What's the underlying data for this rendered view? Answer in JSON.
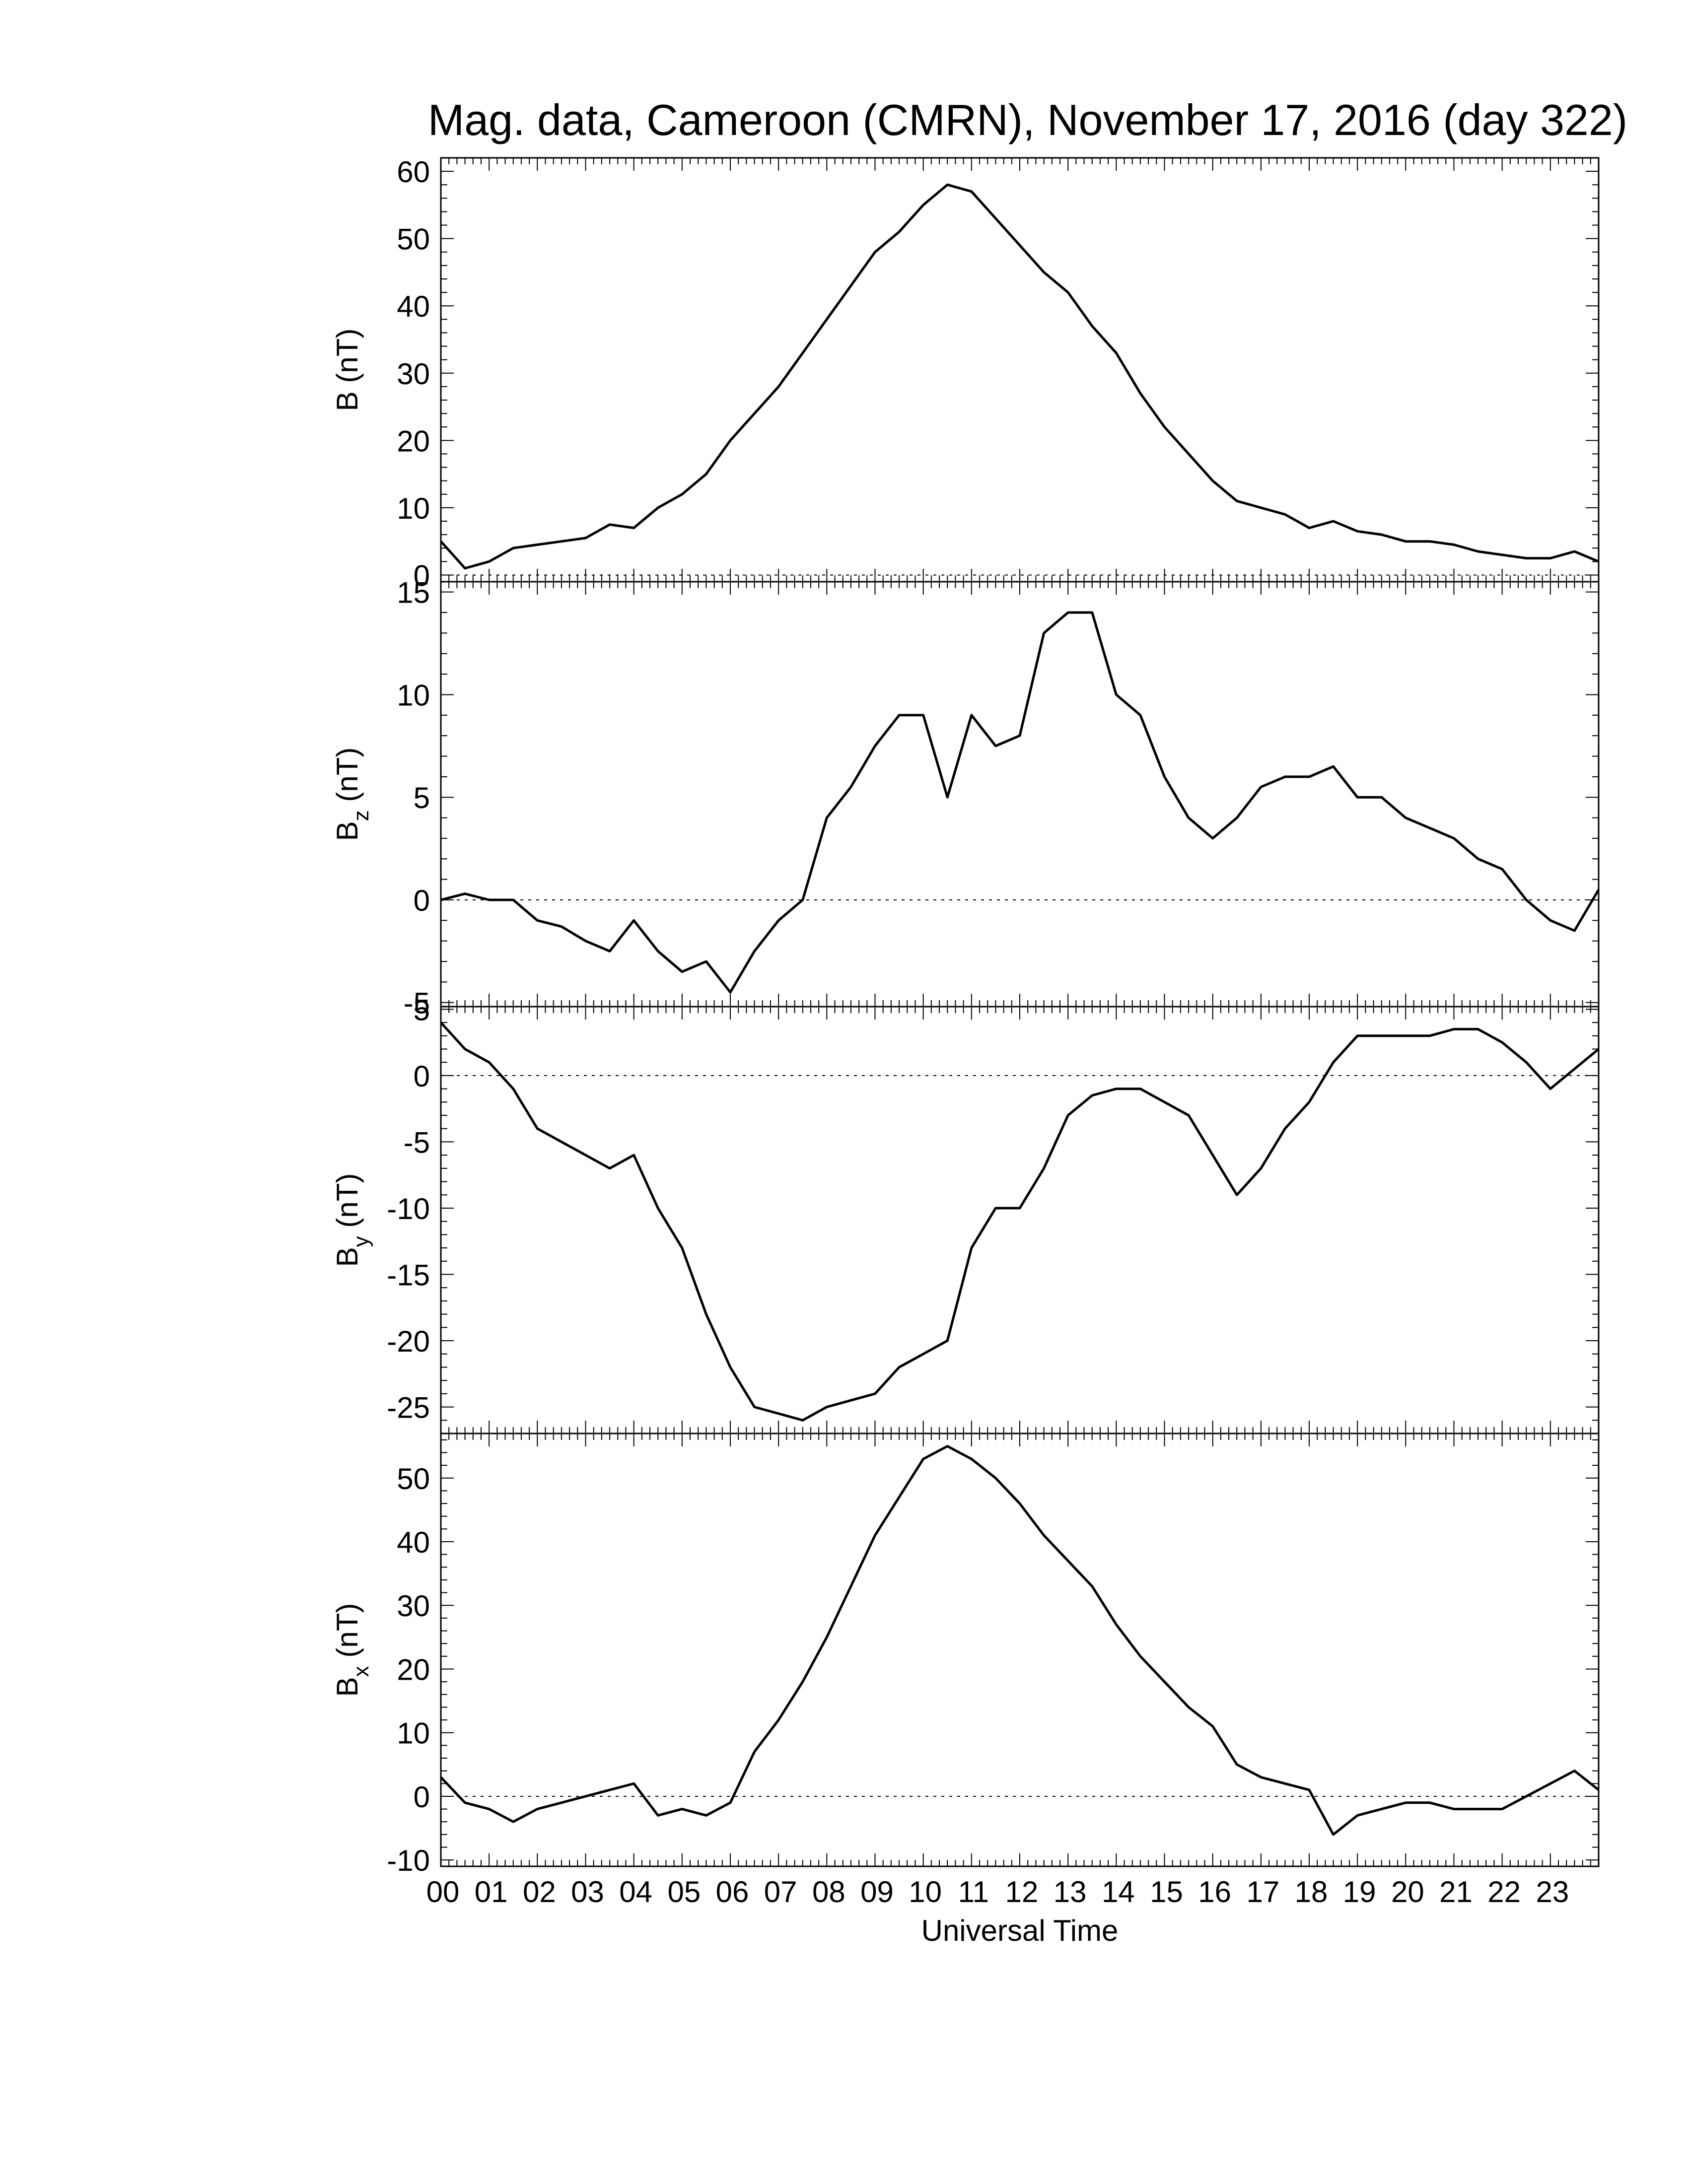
{
  "title": "Mag. data, Cameroon (CMRN), November 17, 2016 (day 322)",
  "xlabel": "Universal Time",
  "x_tick_labels": [
    "00",
    "01",
    "02",
    "03",
    "04",
    "05",
    "06",
    "07",
    "08",
    "09",
    "10",
    "11",
    "12",
    "13",
    "14",
    "15",
    "16",
    "17",
    "18",
    "19",
    "20",
    "21",
    "22",
    "23"
  ],
  "chart_data": [
    {
      "type": "line",
      "ylabel_main": "B",
      "ylabel_sub": "",
      "ylabel_unit": "(nT)",
      "xlim": [
        0,
        24
      ],
      "ylim": [
        -1,
        62
      ],
      "yticks": [
        0,
        10,
        20,
        30,
        40,
        50,
        60
      ],
      "zero_line": true,
      "x": [
        0,
        0.5,
        1,
        1.5,
        2,
        2.5,
        3,
        3.5,
        4,
        4.5,
        5,
        5.5,
        6,
        6.5,
        7,
        7.5,
        8,
        8.5,
        9,
        9.5,
        10,
        10.5,
        11,
        11.5,
        12,
        12.5,
        13,
        13.5,
        14,
        14.5,
        15,
        15.5,
        16,
        16.5,
        17,
        17.5,
        18,
        18.5,
        19,
        19.5,
        20,
        20.5,
        21,
        21.5,
        22,
        22.5,
        23,
        23.5,
        24
      ],
      "values": [
        5,
        1,
        2,
        4,
        4.5,
        5,
        5.5,
        7.5,
        7,
        10,
        12,
        15,
        20,
        24,
        28,
        33,
        38,
        43,
        48,
        51,
        55,
        58,
        57,
        53,
        49,
        45,
        42,
        37,
        33,
        27,
        22,
        18,
        14,
        11,
        10,
        9,
        7,
        8,
        6.5,
        6,
        5,
        5,
        4.5,
        3.5,
        3,
        2.5,
        2.5,
        3.5,
        2
      ]
    },
    {
      "type": "line",
      "ylabel_main": "B",
      "ylabel_sub": "z",
      "ylabel_unit": "(nT)",
      "xlim": [
        0,
        24
      ],
      "ylim": [
        -5.2,
        15.5
      ],
      "yticks": [
        -5,
        0,
        5,
        10,
        15
      ],
      "zero_line": true,
      "x": [
        0,
        0.5,
        1,
        1.5,
        2,
        2.5,
        3,
        3.5,
        4,
        4.5,
        5,
        5.5,
        6,
        6.5,
        7,
        7.5,
        8,
        8.5,
        9,
        9.5,
        10,
        10.5,
        11,
        11.5,
        12,
        12.5,
        13,
        13.5,
        14,
        14.5,
        15,
        15.5,
        16,
        16.5,
        17,
        17.5,
        18,
        18.5,
        19,
        19.5,
        20,
        20.5,
        21,
        21.5,
        22,
        22.5,
        23,
        23.5,
        24
      ],
      "values": [
        0,
        0.3,
        0,
        0,
        -1,
        -1.3,
        -2,
        -2.5,
        -1,
        -2.5,
        -3.5,
        -3,
        -4.5,
        -2.5,
        -1,
        0,
        4,
        5.5,
        7.5,
        9,
        9,
        5,
        9,
        7.5,
        8,
        13,
        14,
        14,
        10,
        9,
        6,
        4,
        3,
        4,
        5.5,
        6,
        6,
        6.5,
        5,
        5,
        4,
        3.5,
        3,
        2,
        1.5,
        0,
        -1,
        -1.5,
        0.5
      ]
    },
    {
      "type": "line",
      "ylabel_main": "B",
      "ylabel_sub": "y",
      "ylabel_unit": "(nT)",
      "xlim": [
        0,
        24
      ],
      "ylim": [
        -27,
        5.2
      ],
      "yticks": [
        -25,
        -20,
        -15,
        -10,
        -5,
        0,
        5
      ],
      "zero_line": true,
      "x": [
        0,
        0.5,
        1,
        1.5,
        2,
        2.5,
        3,
        3.5,
        4,
        4.5,
        5,
        5.5,
        6,
        6.5,
        7,
        7.5,
        8,
        8.5,
        9,
        9.5,
        10,
        10.5,
        11,
        11.5,
        12,
        12.5,
        13,
        13.5,
        14,
        14.5,
        15,
        15.5,
        16,
        16.5,
        17,
        17.5,
        18,
        18.5,
        19,
        19.5,
        20,
        20.5,
        21,
        21.5,
        22,
        22.5,
        23,
        23.5,
        24
      ],
      "values": [
        4,
        2,
        1,
        -1,
        -4,
        -5,
        -6,
        -7,
        -6,
        -10,
        -13,
        -18,
        -22,
        -25,
        -25.5,
        -26,
        -25,
        -24.5,
        -24,
        -22,
        -21,
        -20,
        -13,
        -10,
        -10,
        -7,
        -3,
        -1.5,
        -1,
        -1,
        -2,
        -3,
        -6,
        -9,
        -7,
        -4,
        -2,
        1,
        3,
        3,
        3,
        3,
        3.5,
        3.5,
        2.5,
        1,
        -1,
        0.5,
        2
      ]
    },
    {
      "type": "line",
      "ylabel_main": "B",
      "ylabel_sub": "x",
      "ylabel_unit": "(nT)",
      "xlim": [
        0,
        24
      ],
      "ylim": [
        -11,
        57
      ],
      "yticks": [
        -10,
        0,
        10,
        20,
        30,
        40,
        50
      ],
      "zero_line": true,
      "x": [
        0,
        0.5,
        1,
        1.5,
        2,
        2.5,
        3,
        3.5,
        4,
        4.5,
        5,
        5.5,
        6,
        6.5,
        7,
        7.5,
        8,
        8.5,
        9,
        9.5,
        10,
        10.5,
        11,
        11.5,
        12,
        12.5,
        13,
        13.5,
        14,
        14.5,
        15,
        15.5,
        16,
        16.5,
        17,
        17.5,
        18,
        18.5,
        19,
        19.5,
        20,
        20.5,
        21,
        21.5,
        22,
        22.5,
        23,
        23.5,
        24
      ],
      "values": [
        3,
        -1,
        -2,
        -4,
        -2,
        -1,
        0,
        1,
        2,
        -3,
        -2,
        -3,
        -1,
        7,
        12,
        18,
        25,
        33,
        41,
        47,
        53,
        55,
        53,
        50,
        46,
        41,
        37,
        33,
        27,
        22,
        18,
        14,
        11,
        5,
        3,
        2,
        1,
        -6,
        -3,
        -2,
        -1,
        -1,
        -2,
        -2,
        -2,
        0,
        2,
        4,
        1
      ]
    }
  ]
}
